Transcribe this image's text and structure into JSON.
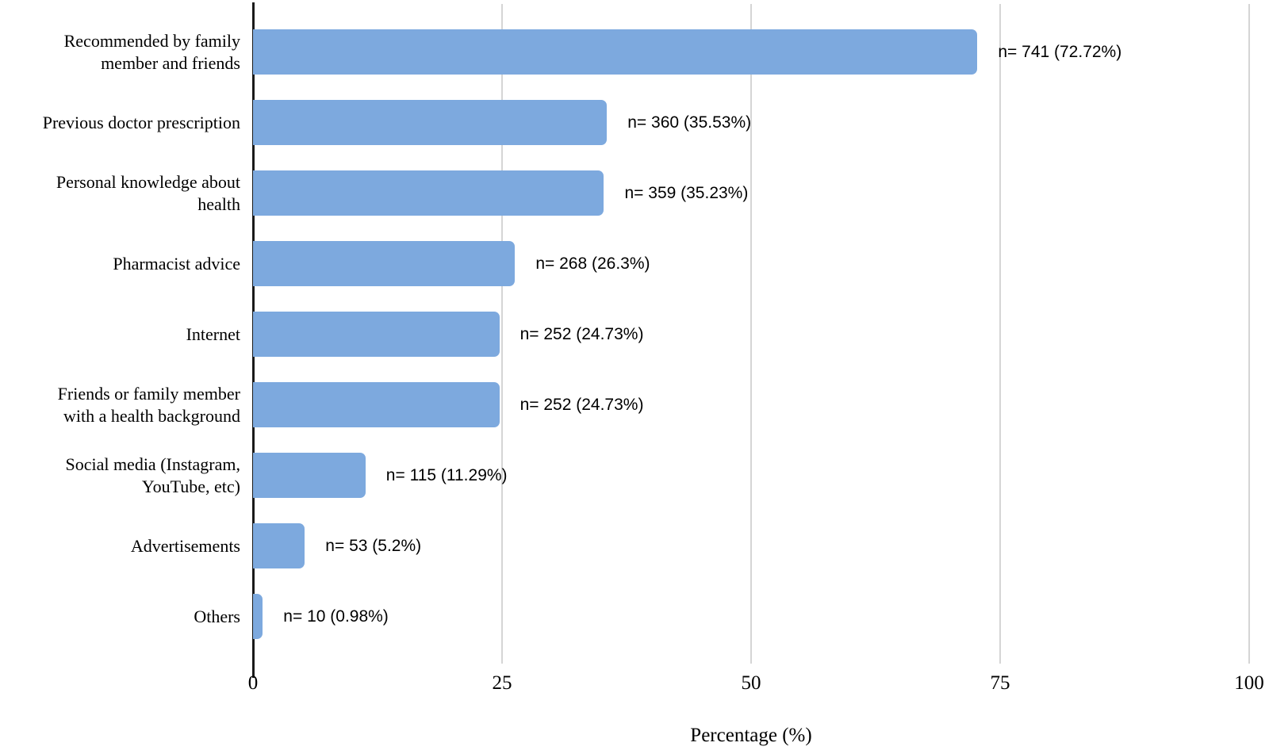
{
  "chart_data": {
    "type": "bar",
    "orientation": "horizontal",
    "title": "",
    "xlabel": "Percentage (%)",
    "ylabel": "",
    "xlim": [
      0,
      100
    ],
    "xticks": [
      "0",
      "25",
      "50",
      "75",
      "100"
    ],
    "xtick_values": [
      0,
      25,
      50,
      75,
      100
    ],
    "grid": true,
    "legend": false,
    "bar_color": "#7DA9DE",
    "gridline_color": "#D5D5D5",
    "axis_line_color": "#1a1a1a",
    "categories": [
      "Recommended by family\nmember and friends",
      "Previous doctor prescription",
      "Personal knowledge about\nhealth",
      "Pharmacist advice",
      "Internet",
      "Friends or family member\nwith a health background",
      "Social media (Instagram,\nYouTube, etc)",
      "Advertisements",
      "Others"
    ],
    "values": [
      72.72,
      35.53,
      35.23,
      26.3,
      24.73,
      24.73,
      11.29,
      5.2,
      0.98
    ],
    "counts": [
      741,
      360,
      359,
      268,
      252,
      252,
      115,
      53,
      10
    ],
    "data_labels": [
      "n= 741 (72.72%)",
      "n= 360 (35.53%)",
      "n= 359 (35.23%)",
      "n= 268 (26.3%)",
      "n= 252 (24.73%)",
      "n= 252 (24.73%)",
      "n= 115 (11.29%)",
      "n= 53 (5.2%)",
      "n= 10 (0.98%)"
    ]
  }
}
